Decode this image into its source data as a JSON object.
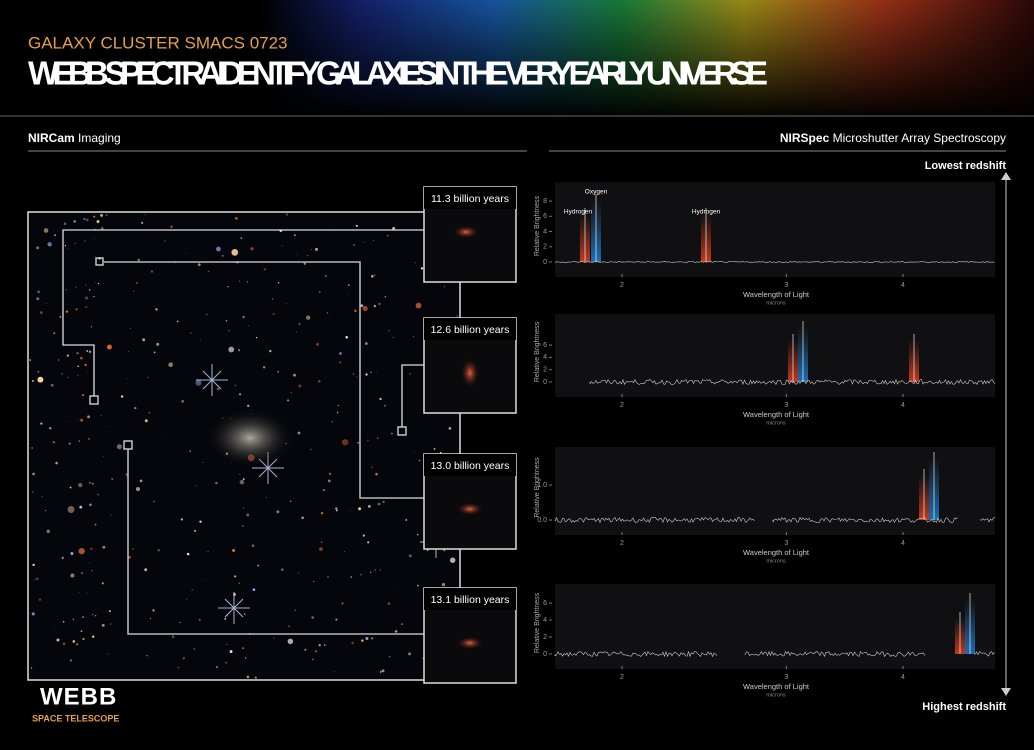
{
  "header": {
    "subtitle": "GALAXY CLUSTER SMACS 0723",
    "title": "WEBB SPECTRA IDENTIFY GALAXIES IN THE VERY EARLY UNIVERSE"
  },
  "left_section": {
    "bold": "NIRCam",
    "rest": "Imaging"
  },
  "right_section": {
    "bold": "NIRSpec",
    "rest": "Microshutter Array Spectroscopy"
  },
  "insets": [
    {
      "label": "11.3 billion years"
    },
    {
      "label": "12.6 billion years"
    },
    {
      "label": "13.0 billion years"
    },
    {
      "label": "13.1 billion years"
    }
  ],
  "redshift": {
    "top": "Lowest redshift",
    "bottom": "Highest redshift"
  },
  "spectra": [
    {
      "y_label": "Relative Brightness",
      "x_label": "Wavelength of Light",
      "x_unit": "microns",
      "xticks": [
        2,
        3,
        4
      ],
      "yticks": [
        0,
        2,
        4,
        6,
        8
      ],
      "lines": [
        "Hydrogen",
        "Oxygen",
        "Hydrogen"
      ]
    },
    {
      "y_label": "Relative Brightness",
      "x_label": "Wavelength of Light",
      "x_unit": "microns",
      "xticks": [
        2,
        3,
        4
      ],
      "yticks": [
        0,
        2,
        4,
        6
      ]
    },
    {
      "y_label": "Relative Brightness",
      "x_label": "Wavelength of Light",
      "x_unit": "microns",
      "xticks": [
        2,
        3,
        4
      ],
      "yticks": [
        {
          "value": 0,
          "label": "0.0"
        },
        {
          "value": 1,
          "label": "1.0"
        }
      ]
    },
    {
      "y_label": "Relative Brightness",
      "x_label": "Wavelength of Light",
      "x_unit": "microns",
      "xticks": [
        2,
        3,
        4
      ],
      "yticks": [
        0,
        2,
        4,
        6
      ]
    }
  ],
  "logo": {
    "name": "WEBB",
    "sub": "SPACE TELESCOPE"
  }
}
